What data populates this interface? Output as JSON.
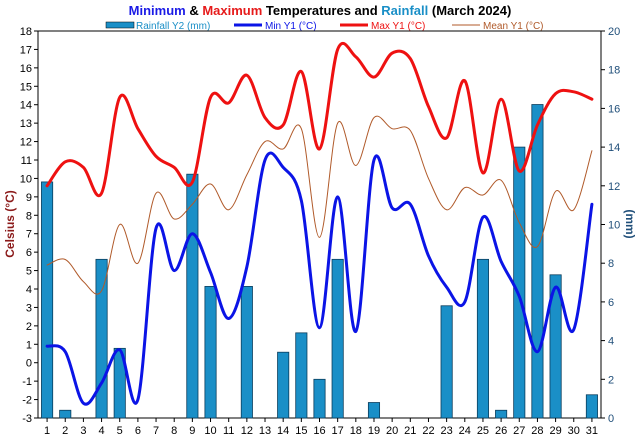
{
  "title": {
    "part1": "Minimum",
    "part2": " & ",
    "part3": "Maximum",
    "part4": " Temperatures and ",
    "part5": "Rainfall",
    "part6": " (March 2024)",
    "colors": {
      "min": "#1a1ae6",
      "max": "#e61a1a",
      "rain": "#1a8fc7",
      "text": "#000000"
    }
  },
  "legend": {
    "rain": "Rainfall Y2 (mm)",
    "min": "Min Y1 (°C)",
    "max": "Max Y1 (°C)",
    "mean": "Mean Y1 (°C)"
  },
  "chart_data": {
    "type": "bar+line",
    "x": [
      1,
      2,
      3,
      4,
      5,
      6,
      7,
      8,
      9,
      10,
      11,
      12,
      13,
      14,
      15,
      16,
      17,
      18,
      19,
      20,
      21,
      22,
      23,
      24,
      25,
      26,
      27,
      28,
      29,
      30,
      31
    ],
    "xlabel": "",
    "ylabel": "Celsius (°C)",
    "y2label": "(mm)",
    "ylim": [
      -3,
      18
    ],
    "y2lim": [
      0,
      20
    ],
    "yticks": [
      -3,
      -2,
      -1,
      0,
      1,
      2,
      3,
      4,
      5,
      6,
      7,
      8,
      9,
      10,
      11,
      12,
      13,
      14,
      15,
      16,
      17,
      18
    ],
    "y2ticks": [
      0,
      2,
      4,
      6,
      8,
      10,
      12,
      14,
      16,
      18,
      20
    ],
    "grid": false,
    "legend_position": "top",
    "series": [
      {
        "name": "Rainfall Y2 (mm)",
        "axis": "y2",
        "kind": "bar",
        "color": "#1a8fc7",
        "values": [
          12.2,
          0.4,
          0,
          8.2,
          3.6,
          0,
          0,
          0,
          12.6,
          6.8,
          0,
          6.8,
          0,
          3.4,
          4.4,
          2.0,
          8.2,
          0,
          0.8,
          0,
          0,
          0,
          5.8,
          0,
          8.2,
          0.4,
          14.0,
          16.2,
          7.4,
          0,
          1.2
        ]
      },
      {
        "name": "Min Y1 (°C)",
        "axis": "y",
        "kind": "line",
        "color": "#0b14e6",
        "values": [
          0.9,
          0.6,
          -2.2,
          -1.1,
          0.7,
          -2.0,
          7.3,
          5.0,
          7.0,
          4.9,
          2.4,
          5.2,
          11.0,
          10.6,
          8.8,
          1.9,
          9.0,
          1.7,
          11.0,
          8.4,
          8.6,
          5.8,
          4.1,
          3.3,
          7.9,
          5.5,
          3.6,
          0.6,
          4.1,
          1.8,
          8.6
        ]
      },
      {
        "name": "Max Y1 (°C)",
        "axis": "y",
        "kind": "line",
        "color": "#ee1111",
        "values": [
          9.6,
          10.9,
          10.6,
          9.2,
          14.4,
          12.7,
          11.2,
          10.6,
          9.8,
          14.4,
          14.1,
          15.6,
          13.3,
          12.9,
          15.8,
          11.6,
          17.0,
          16.6,
          15.5,
          16.8,
          16.5,
          13.9,
          12.2,
          15.3,
          10.3,
          14.3,
          10.4,
          12.9,
          14.6,
          14.7,
          14.3
        ]
      },
      {
        "name": "Mean Y1 (°C)",
        "axis": "y",
        "kind": "line",
        "color": "#b05a2a",
        "values": [
          5.3,
          5.6,
          4.4,
          3.9,
          7.5,
          5.4,
          9.2,
          7.8,
          8.6,
          9.7,
          8.3,
          10.2,
          12.0,
          11.6,
          12.7,
          6.8,
          13.0,
          10.7,
          13.3,
          12.7,
          12.6,
          10.0,
          8.3,
          9.5,
          9.1,
          9.9,
          7.6,
          6.3,
          9.3,
          8.3,
          11.5
        ]
      }
    ]
  }
}
